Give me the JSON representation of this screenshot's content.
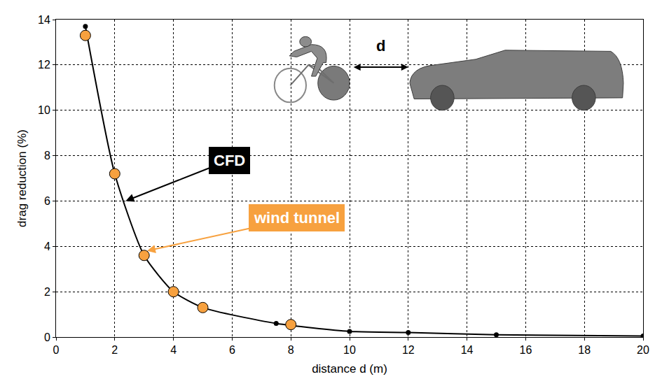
{
  "chart_data": {
    "type": "line",
    "x_label": "distance d (m)",
    "y_label": "drag reduction (%)",
    "series": [
      {
        "name": "CFD",
        "type": "line",
        "color": "#000000",
        "marker": "circle",
        "line_style": "solid",
        "x": [
          1,
          2,
          3,
          4,
          5,
          7.5,
          10,
          12,
          15,
          20
        ],
        "values": [
          13.7,
          7.2,
          3.6,
          2.0,
          1.3,
          0.6,
          0.25,
          0.2,
          0.1,
          0.05
        ]
      },
      {
        "name": "wind tunnel",
        "type": "scatter",
        "color": "#f7a13f",
        "marker": "circle",
        "x": [
          1,
          2,
          3,
          4,
          5,
          8
        ],
        "values": [
          13.3,
          7.2,
          3.6,
          2.0,
          1.3,
          0.55
        ]
      }
    ],
    "annotations": [
      "d"
    ],
    "xlim": [
      0,
      20
    ],
    "xticks": [
      0,
      2,
      4,
      6,
      8,
      10,
      12,
      14,
      16,
      18,
      20
    ],
    "ylim": [
      0,
      14
    ],
    "yticks": [
      0,
      2,
      4,
      6,
      8,
      10,
      12,
      14
    ],
    "grid": true
  }
}
